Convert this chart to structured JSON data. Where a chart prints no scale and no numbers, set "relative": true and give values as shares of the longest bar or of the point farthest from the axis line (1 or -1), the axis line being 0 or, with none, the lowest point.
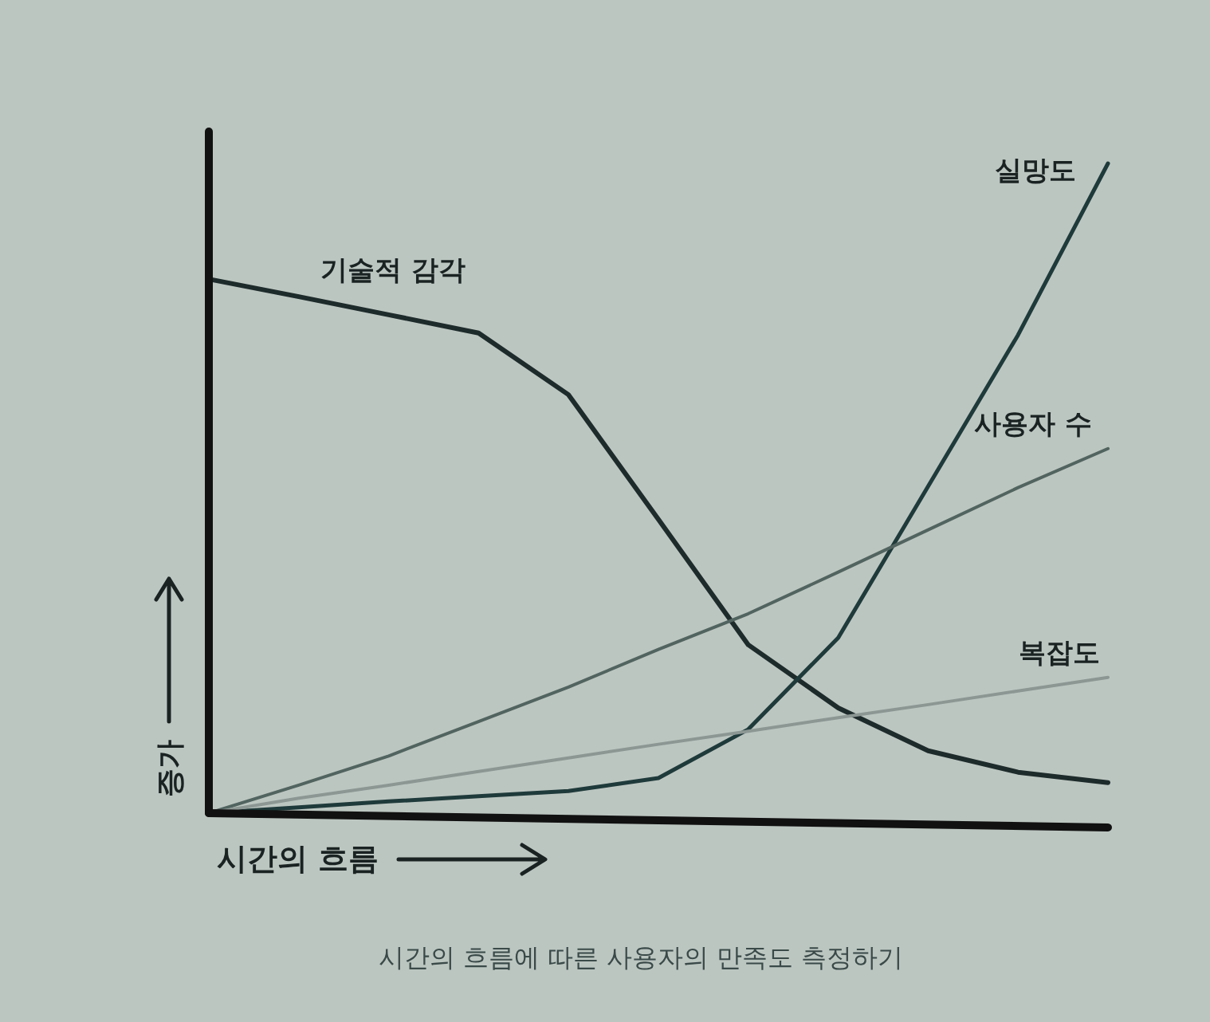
{
  "chart_data": {
    "type": "line",
    "relative": true,
    "xlabel": "시간의 흐름",
    "ylabel": "증가",
    "categories": [
      null,
      null,
      null,
      null,
      null,
      null,
      null,
      null,
      null,
      null,
      null
    ],
    "series": [
      {
        "name": "기술적 감각",
        "color": "#1e2b2b",
        "values": [
          0.822,
          0.795,
          0.767,
          0.739,
          0.644,
          0.452,
          0.259,
          0.162,
          0.096,
          0.063,
          0.047
        ]
      },
      {
        "name": "실망도",
        "color": "#1f3a3a",
        "values": [
          0,
          0.009,
          0.018,
          0.026,
          0.034,
          0.054,
          0.129,
          0.27,
          0.503,
          0.736,
          1.0
        ]
      },
      {
        "name": "사용자 수",
        "color": "#52645f",
        "values": [
          0,
          0.043,
          0.088,
          0.141,
          0.194,
          0.252,
          0.307,
          0.371,
          0.436,
          0.501,
          0.561
        ]
      },
      {
        "name": "복잡도",
        "color": "#8c9794",
        "values": [
          0,
          0.023,
          0.043,
          0.064,
          0.085,
          0.106,
          0.126,
          0.147,
          0.167,
          0.188,
          0.209
        ]
      }
    ],
    "annotations": [
      "시간의 흐름에 따른 사용자의 만족도 측정하기"
    ]
  }
}
